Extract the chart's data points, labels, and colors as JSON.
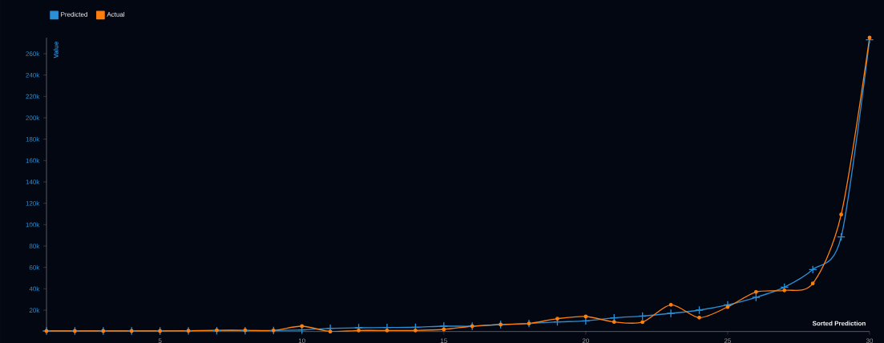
{
  "chart_data": {
    "type": "line",
    "xlabel": "Sorted Prediction",
    "ylabel": "Value",
    "x": [
      1,
      2,
      3,
      4,
      5,
      6,
      7,
      8,
      9,
      10,
      11,
      12,
      13,
      14,
      15,
      16,
      17,
      18,
      19,
      20,
      21,
      22,
      23,
      24,
      25,
      26,
      27,
      28,
      29,
      30
    ],
    "series": [
      {
        "name": "Predicted",
        "color": "#2b8fd6",
        "marker": "cross",
        "values": [
          500,
          500,
          500,
          500,
          500,
          600,
          800,
          800,
          1000,
          1500,
          3000,
          3500,
          3800,
          4000,
          5000,
          5000,
          6500,
          7500,
          9000,
          10000,
          12800,
          14500,
          17000,
          20000,
          25000,
          32000,
          41500,
          58000,
          88500,
          273000
        ]
      },
      {
        "name": "Actual",
        "color": "#ff7f0e",
        "marker": "circle",
        "values": [
          500,
          500,
          500,
          500,
          500,
          700,
          1200,
          1200,
          1000,
          5000,
          0,
          1000,
          1000,
          1000,
          2000,
          5000,
          6500,
          7500,
          12000,
          14000,
          9000,
          8800,
          25000,
          13000,
          23000,
          37000,
          38500,
          45000,
          109500,
          275000
        ]
      }
    ],
    "xlim": [
      1,
      30
    ],
    "xticks": [
      5,
      10,
      15,
      20,
      25,
      30
    ],
    "ylim": [
      0,
      275000
    ],
    "yticks": [
      {
        "value": 20000,
        "label": "20k"
      },
      {
        "value": 40000,
        "label": "40k"
      },
      {
        "value": 60000,
        "label": "60k"
      },
      {
        "value": 80000,
        "label": "80k"
      },
      {
        "value": 100000,
        "label": "100k"
      },
      {
        "value": 120000,
        "label": "120k"
      },
      {
        "value": 140000,
        "label": "140k"
      },
      {
        "value": 160000,
        "label": "160k"
      },
      {
        "value": 180000,
        "label": "180k"
      },
      {
        "value": 200000,
        "label": "200k"
      },
      {
        "value": 220000,
        "label": "220k"
      },
      {
        "value": 240000,
        "label": "240k"
      },
      {
        "value": 260000,
        "label": "260k"
      }
    ],
    "legend": "top left",
    "grid": false
  }
}
